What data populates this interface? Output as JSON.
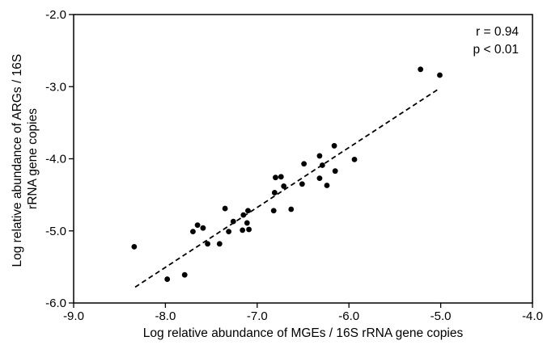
{
  "chart_data": {
    "type": "scatter",
    "title": "",
    "xlabel": "Log relative abundance of MGEs / 16S rRNA gene copies",
    "ylabel": [
      "Log relative abundance of ARGs / 16S",
      "rRNA gene copies"
    ],
    "xlim": [
      -9.0,
      -4.0
    ],
    "ylim": [
      -6.0,
      -2.0
    ],
    "xticks": [
      -9.0,
      -8.0,
      -7.0,
      -6.0,
      -5.0,
      -4.0
    ],
    "yticks": [
      -6.0,
      -5.0,
      -4.0,
      -3.0,
      -2.0
    ],
    "xtick_labels": [
      "-9.0",
      "-8.0",
      "-7.0",
      "-6.0",
      "-5.0",
      "-4.0"
    ],
    "ytick_labels": [
      "-6.0",
      "-5.0",
      "-4.0",
      "-3.0",
      "-2.0"
    ],
    "grid": false,
    "annotations": [
      "r = 0.94",
      "p < 0.01"
    ],
    "trendline": {
      "style": "dashed",
      "x": [
        -8.33,
        -5.02
      ],
      "y": [
        -5.78,
        -3.03
      ]
    },
    "points": [
      {
        "x": -8.34,
        "y": -5.22
      },
      {
        "x": -7.98,
        "y": -5.67
      },
      {
        "x": -7.79,
        "y": -5.61
      },
      {
        "x": -7.7,
        "y": -5.01
      },
      {
        "x": -7.65,
        "y": -4.92
      },
      {
        "x": -7.59,
        "y": -4.96
      },
      {
        "x": -7.54,
        "y": -5.18
      },
      {
        "x": -7.41,
        "y": -5.18
      },
      {
        "x": -7.35,
        "y": -4.69
      },
      {
        "x": -7.31,
        "y": -5.01
      },
      {
        "x": -7.26,
        "y": -4.87
      },
      {
        "x": -7.16,
        "y": -4.99
      },
      {
        "x": -7.15,
        "y": -4.78
      },
      {
        "x": -7.11,
        "y": -4.89
      },
      {
        "x": -7.1,
        "y": -4.72
      },
      {
        "x": -7.09,
        "y": -4.98
      },
      {
        "x": -6.82,
        "y": -4.72
      },
      {
        "x": -6.81,
        "y": -4.47
      },
      {
        "x": -6.8,
        "y": -4.26
      },
      {
        "x": -6.74,
        "y": -4.25
      },
      {
        "x": -6.71,
        "y": -4.38
      },
      {
        "x": -6.63,
        "y": -4.7
      },
      {
        "x": -6.51,
        "y": -4.35
      },
      {
        "x": -6.49,
        "y": -4.07
      },
      {
        "x": -6.32,
        "y": -4.27
      },
      {
        "x": -6.32,
        "y": -3.96
      },
      {
        "x": -6.29,
        "y": -4.09
      },
      {
        "x": -6.24,
        "y": -4.37
      },
      {
        "x": -6.16,
        "y": -3.82
      },
      {
        "x": -6.15,
        "y": -4.17
      },
      {
        "x": -5.94,
        "y": -4.01
      },
      {
        "x": -5.22,
        "y": -2.76
      },
      {
        "x": -5.01,
        "y": -2.84
      }
    ]
  }
}
